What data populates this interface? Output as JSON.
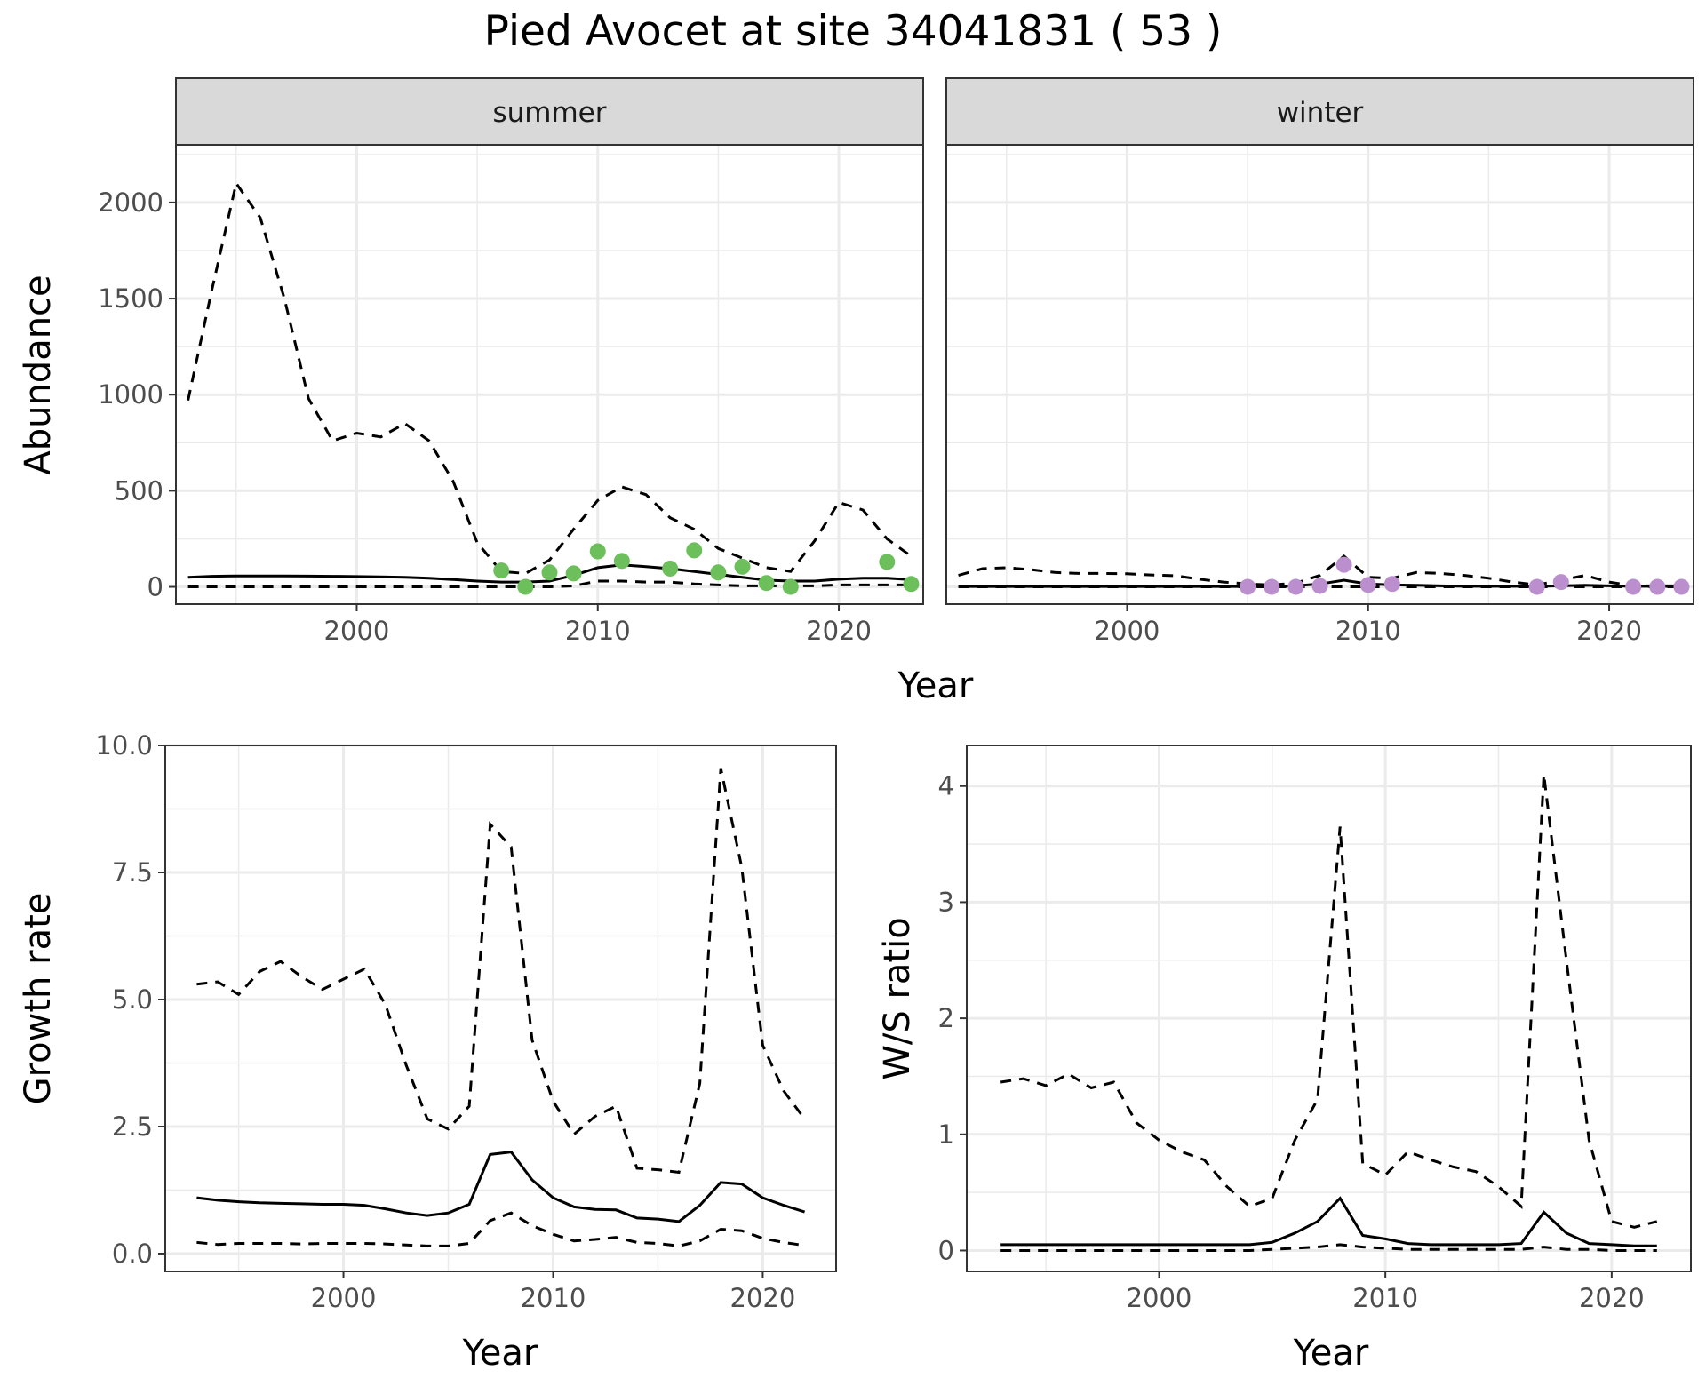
{
  "title": "Pied Avocet at site 34041831 ( 53 )",
  "colors": {
    "summer_points": "#6CBF5A",
    "winter_points": "#BB8FCE",
    "strip_bg": "#D9D9D9",
    "line": "#000000"
  },
  "chart_data": [
    {
      "id": "abundance",
      "type": "line",
      "facets": [
        "summer",
        "winter"
      ],
      "xlabel": "Year",
      "ylabel": "Abundance",
      "xlim": [
        1992.5,
        2023.5
      ],
      "ylim": [
        -90,
        2300
      ],
      "xticks": [
        2000,
        2010,
        2020
      ],
      "yticks": [
        0,
        500,
        1000,
        1500,
        2000
      ],
      "ytick_labels": [
        "0",
        "500",
        "1000",
        "1500",
        "2000"
      ],
      "grid": true,
      "panels": {
        "summer": {
          "x": [
            1993,
            1994,
            1995,
            1996,
            1997,
            1998,
            1999,
            2000,
            2001,
            2002,
            2003,
            2004,
            2005,
            2006,
            2007,
            2008,
            2009,
            2010,
            2011,
            2012,
            2013,
            2014,
            2015,
            2016,
            2017,
            2018,
            2019,
            2020,
            2021,
            2022,
            2023
          ],
          "mean": [
            50,
            55,
            57,
            57,
            57,
            56,
            55,
            54,
            52,
            50,
            45,
            38,
            30,
            25,
            25,
            30,
            60,
            100,
            115,
            105,
            95,
            80,
            65,
            50,
            35,
            30,
            30,
            40,
            45,
            45,
            38
          ],
          "lower": [
            0,
            0,
            0,
            0,
            0,
            0,
            0,
            0,
            0,
            0,
            0,
            0,
            0,
            0,
            0,
            0,
            5,
            30,
            30,
            25,
            25,
            15,
            10,
            5,
            5,
            5,
            5,
            10,
            10,
            10,
            10
          ],
          "upper": [
            970,
            1550,
            2100,
            1920,
            1500,
            980,
            760,
            800,
            780,
            850,
            760,
            550,
            230,
            80,
            70,
            140,
            300,
            450,
            520,
            480,
            360,
            300,
            200,
            150,
            100,
            80,
            240,
            440,
            400,
            250,
            160
          ],
          "obs_x": [
            2006,
            2007,
            2008,
            2009,
            2010,
            2011,
            2013,
            2014,
            2015,
            2016,
            2017,
            2018,
            2022,
            2023
          ],
          "obs_y": [
            85,
            0,
            75,
            70,
            185,
            135,
            95,
            190,
            75,
            105,
            20,
            0,
            130,
            15
          ]
        },
        "winter": {
          "x": [
            1993,
            1994,
            1995,
            1996,
            1997,
            1998,
            1999,
            2000,
            2001,
            2002,
            2003,
            2004,
            2005,
            2006,
            2007,
            2008,
            2009,
            2010,
            2011,
            2012,
            2013,
            2014,
            2015,
            2016,
            2017,
            2018,
            2019,
            2020,
            2021,
            2022,
            2023
          ],
          "mean": [
            2,
            2,
            2,
            2,
            2,
            2,
            2,
            2,
            2,
            2,
            2,
            2,
            2,
            2,
            5,
            15,
            35,
            15,
            10,
            8,
            5,
            3,
            3,
            3,
            3,
            5,
            8,
            5,
            3,
            3,
            2
          ],
          "lower": [
            0,
            0,
            0,
            0,
            0,
            0,
            0,
            0,
            0,
            0,
            0,
            0,
            0,
            0,
            0,
            0,
            0,
            0,
            0,
            0,
            0,
            0,
            0,
            0,
            0,
            0,
            0,
            0,
            0,
            0,
            0
          ],
          "upper": [
            60,
            95,
            100,
            90,
            75,
            70,
            70,
            68,
            62,
            58,
            40,
            25,
            15,
            10,
            20,
            60,
            160,
            50,
            45,
            75,
            70,
            60,
            45,
            25,
            10,
            35,
            60,
            25,
            5,
            5,
            5
          ],
          "obs_x": [
            2005,
            2006,
            2007,
            2008,
            2009,
            2010,
            2011,
            2017,
            2018,
            2021,
            2022,
            2023
          ],
          "obs_y": [
            0,
            0,
            0,
            5,
            115,
            10,
            15,
            0,
            25,
            0,
            0,
            0
          ]
        }
      }
    },
    {
      "id": "growth",
      "type": "line",
      "xlabel": "Year",
      "ylabel": "Growth rate",
      "xlim": [
        1991.5,
        2023.5
      ],
      "ylim": [
        -0.35,
        10.0
      ],
      "xticks": [
        2000,
        2010,
        2020
      ],
      "yticks": [
        0,
        2.5,
        5,
        7.5,
        10
      ],
      "ytick_labels": [
        "0.0",
        "2.5",
        "5.0",
        "7.5",
        "10.0"
      ],
      "grid": true,
      "x": [
        1993,
        1994,
        1995,
        1996,
        1997,
        1998,
        1999,
        2000,
        2001,
        2002,
        2003,
        2004,
        2005,
        2006,
        2007,
        2008,
        2009,
        2010,
        2011,
        2012,
        2013,
        2014,
        2015,
        2016,
        2017,
        2018,
        2019,
        2020,
        2021,
        2022
      ],
      "mean": [
        1.1,
        1.05,
        1.02,
        1.0,
        0.99,
        0.98,
        0.97,
        0.97,
        0.95,
        0.88,
        0.8,
        0.75,
        0.8,
        0.97,
        1.95,
        2.0,
        1.45,
        1.1,
        0.92,
        0.87,
        0.86,
        0.7,
        0.68,
        0.63,
        0.95,
        1.4,
        1.37,
        1.1,
        0.95,
        0.82
      ],
      "lower": [
        0.22,
        0.18,
        0.2,
        0.2,
        0.2,
        0.19,
        0.2,
        0.2,
        0.2,
        0.19,
        0.17,
        0.15,
        0.15,
        0.2,
        0.65,
        0.8,
        0.55,
        0.38,
        0.25,
        0.28,
        0.32,
        0.22,
        0.2,
        0.15,
        0.25,
        0.48,
        0.45,
        0.3,
        0.22,
        0.16
      ],
      "upper": [
        5.3,
        5.35,
        5.1,
        5.55,
        5.75,
        5.45,
        5.2,
        5.4,
        5.6,
        4.9,
        3.7,
        2.65,
        2.45,
        2.9,
        8.45,
        8.0,
        4.2,
        3.0,
        2.35,
        2.7,
        2.9,
        1.68,
        1.65,
        1.6,
        3.35,
        9.55,
        7.6,
        4.1,
        3.2,
        2.65
      ]
    },
    {
      "id": "ws_ratio",
      "type": "line",
      "xlabel": "Year",
      "ylabel": "W/S ratio",
      "xlim": [
        1991.5,
        2023.5
      ],
      "ylim": [
        -0.18,
        4.35
      ],
      "xticks": [
        2000,
        2010,
        2020
      ],
      "yticks": [
        0,
        1,
        2,
        3,
        4
      ],
      "ytick_labels": [
        "0",
        "1",
        "2",
        "3",
        "4"
      ],
      "grid": true,
      "x": [
        1993,
        1994,
        1995,
        1996,
        1997,
        1998,
        1999,
        2000,
        2001,
        2002,
        2003,
        2004,
        2005,
        2006,
        2007,
        2008,
        2009,
        2010,
        2011,
        2012,
        2013,
        2014,
        2015,
        2016,
        2017,
        2018,
        2019,
        2020,
        2021,
        2022
      ],
      "mean": [
        0.05,
        0.05,
        0.05,
        0.05,
        0.05,
        0.05,
        0.05,
        0.05,
        0.05,
        0.05,
        0.05,
        0.05,
        0.07,
        0.15,
        0.25,
        0.45,
        0.13,
        0.1,
        0.06,
        0.05,
        0.05,
        0.05,
        0.05,
        0.06,
        0.33,
        0.15,
        0.06,
        0.05,
        0.04,
        0.04
      ],
      "lower": [
        0.0,
        0.0,
        0.0,
        0.0,
        0.0,
        0.0,
        0.0,
        0.0,
        0.0,
        0.0,
        0.0,
        0.0,
        0.01,
        0.02,
        0.03,
        0.05,
        0.03,
        0.02,
        0.01,
        0.01,
        0.01,
        0.01,
        0.01,
        0.01,
        0.03,
        0.01,
        0.01,
        0.0,
        0.0,
        0.0
      ],
      "upper": [
        1.45,
        1.48,
        1.42,
        1.52,
        1.4,
        1.45,
        1.1,
        0.95,
        0.85,
        0.78,
        0.55,
        0.38,
        0.45,
        0.95,
        1.3,
        3.65,
        0.75,
        0.65,
        0.85,
        0.78,
        0.72,
        0.68,
        0.55,
        0.38,
        4.1,
        2.5,
        0.95,
        0.25,
        0.2,
        0.25
      ]
    }
  ]
}
